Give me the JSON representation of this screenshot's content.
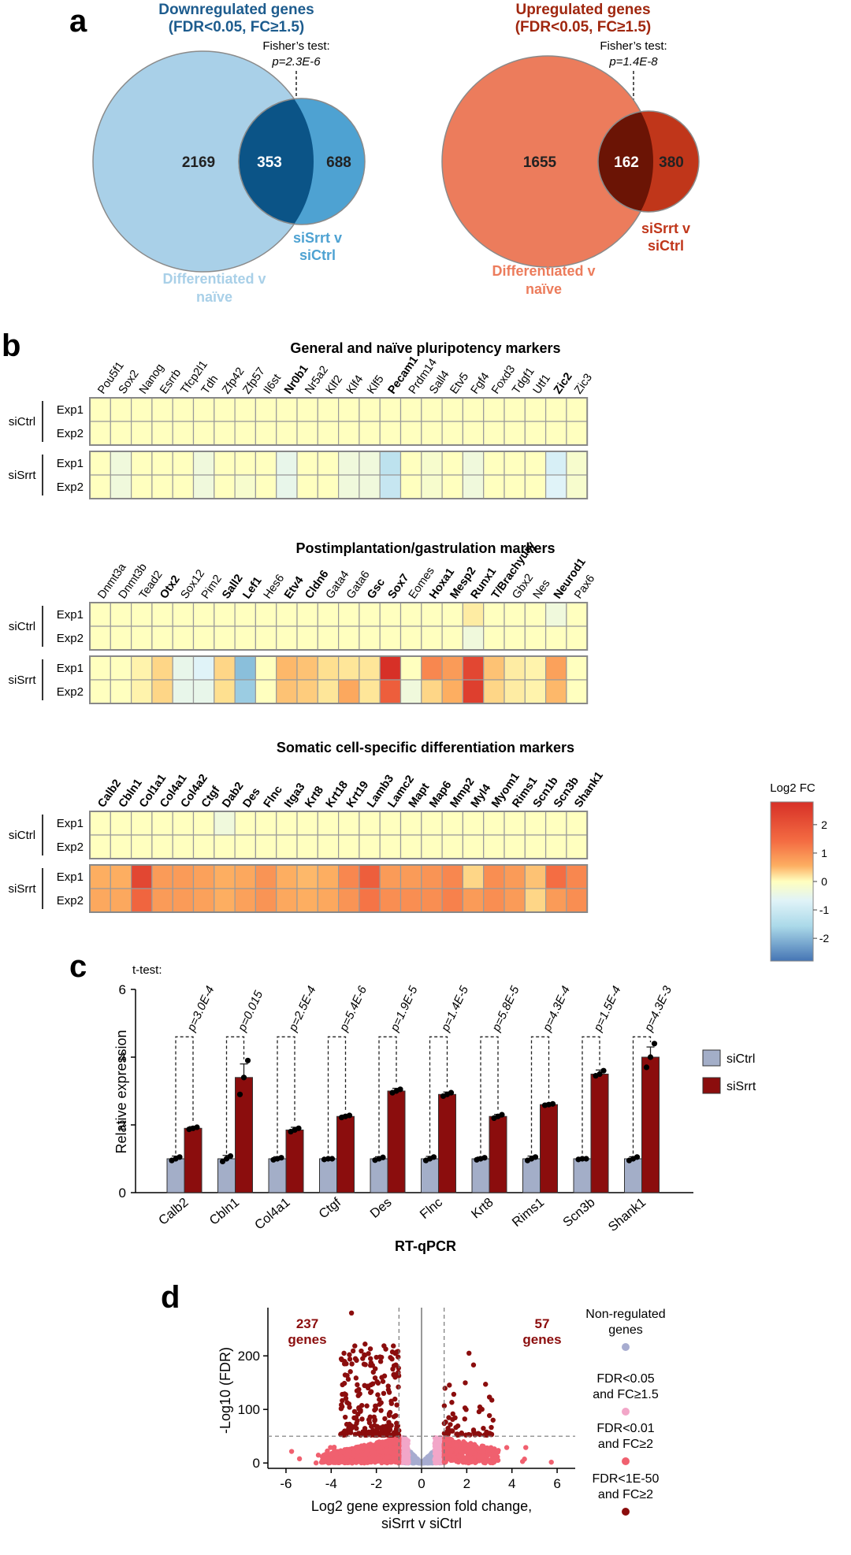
{
  "panel_a": {
    "label": "a",
    "left": {
      "title_line1": "Downregulated genes",
      "title_line2": "(FDR<0.05, FC≥1.5)",
      "fisher_line1": "Fisher’s test:",
      "fisher_line2": "p=2.3E-6",
      "only_big": "2169",
      "overlap": "353",
      "only_small": "688",
      "small_label_line1": "siSrrt v",
      "small_label_line2": "siCtrl",
      "big_label_line1": "Differentiated v",
      "big_label_line2": "naïve",
      "color_big": "#a9d0e8",
      "color_small": "#4ea2d2",
      "color_overlap": "#0b5487",
      "title_color": "#1d5c8e"
    },
    "right": {
      "title_line1": "Upregulated genes",
      "title_line2": "(FDR<0.05, FC≥1.5)",
      "fisher_line1": "Fisher’s test:",
      "fisher_line2": "p=1.4E-8",
      "only_big": "1655",
      "overlap": "162",
      "only_small": "380",
      "small_label_line1": "siSrrt v",
      "small_label_line2": "siCtrl",
      "big_label_line1": "Differentiated v",
      "big_label_line2": "naïve",
      "color_big": "#ec7c5c",
      "color_small": "#c0361a",
      "color_overlap": "#6b1405",
      "title_color": "#a0270f"
    }
  },
  "panel_b": {
    "label": "b",
    "row_labels": [
      "Exp1",
      "Exp2",
      "Exp1",
      "Exp2"
    ],
    "group_labels": [
      "siCtrl",
      "siSrrt"
    ],
    "legend": {
      "title": "Log2 FC",
      "ticks": [
        "2",
        "1",
        "0",
        "-1",
        "-2"
      ]
    },
    "heatmaps": [
      {
        "title": "General and naïve pluripotency markers",
        "genes": [
          "Pou5f1",
          "Sox2",
          "Nanog",
          "Esrrb",
          "Tfcp2l1",
          "Tdh",
          "Zfp42",
          "Zfp57",
          "Il6st",
          "Nr0b1",
          "Nr5a2",
          "Klf2",
          "Klf4",
          "Klf5",
          "Pecam1",
          "Prdm14",
          "Sall4",
          "Etv5",
          "Fgf4",
          "Foxd3",
          "Tdgf1",
          "Utf1",
          "Zic2",
          "Zic3"
        ],
        "bold": [
          "Nr0b1",
          "Pecam1",
          "Zic2"
        ],
        "values": [
          [
            0,
            0,
            0,
            0,
            0,
            0,
            0,
            0,
            0,
            0,
            0,
            0,
            0,
            0,
            0,
            0,
            0,
            0,
            0,
            0,
            0,
            0,
            0,
            0
          ],
          [
            0,
            0,
            0,
            0,
            0,
            0,
            0,
            0,
            0,
            0,
            0,
            0,
            0,
            0,
            0,
            0,
            0,
            0,
            0,
            0,
            0,
            0,
            0,
            0
          ],
          [
            0,
            -0.2,
            0,
            0,
            0,
            -0.2,
            0,
            0,
            0,
            -0.3,
            0,
            0,
            -0.2,
            -0.2,
            -0.8,
            0,
            -0.1,
            0,
            -0.2,
            0,
            0,
            0,
            -0.5,
            -0.1
          ],
          [
            0,
            -0.2,
            0,
            0,
            0,
            -0.2,
            0,
            -0.1,
            0,
            -0.3,
            0,
            0,
            -0.2,
            -0.2,
            -0.7,
            0,
            -0.1,
            0,
            -0.2,
            0,
            0,
            0,
            -0.4,
            -0.1
          ]
        ]
      },
      {
        "title": "Postimplantation/gastrulation markers",
        "genes": [
          "Dnmt3a",
          "Dnmt3b",
          "Tead2",
          "Otx2",
          "Sox12",
          "Pim2",
          "Sall2",
          "Lef1",
          "Hes6",
          "Etv4",
          "Cldn6",
          "Gata4",
          "Gata6",
          "Gsc",
          "Sox7",
          "Eomes",
          "Hoxa1",
          "Mesp2",
          "Runx1",
          "T/Brachyury",
          "Gbx2",
          "Nes",
          "Neurod1",
          "Pax6"
        ],
        "bold": [
          "Otx2",
          "Sall2",
          "Lef1",
          "Etv4",
          "Cldn6",
          "Gsc",
          "Sox7",
          "Hoxa1",
          "Mesp2",
          "Runx1",
          "T/Brachyury",
          "Neurod1"
        ],
        "values": [
          [
            0,
            0,
            0,
            0,
            0,
            0,
            0,
            0,
            0,
            0,
            0,
            0,
            0,
            0,
            0,
            0,
            0,
            0,
            0.3,
            0,
            0,
            0,
            -0.2,
            0
          ],
          [
            0,
            0,
            0,
            0,
            0,
            0,
            0,
            0,
            0,
            0,
            0,
            0,
            0,
            0,
            0,
            0,
            0,
            0,
            -0.2,
            0,
            0,
            0,
            0,
            0
          ],
          [
            0,
            0,
            0.2,
            0.6,
            -0.3,
            -0.4,
            0.6,
            -1.6,
            0,
            0.9,
            0.8,
            0.5,
            0.4,
            0.4,
            2.8,
            0,
            1.6,
            1.3,
            2.5,
            0.8,
            0.3,
            0.2,
            1.2,
            0
          ],
          [
            0,
            0,
            0.2,
            0.6,
            -0.3,
            -0.3,
            0.5,
            -1.3,
            0,
            0.8,
            0.7,
            0.4,
            1.1,
            0.4,
            2.2,
            -0.2,
            0.6,
            1.0,
            2.6,
            0.6,
            0.3,
            0.2,
            0.9,
            0
          ]
        ]
      },
      {
        "title": "Somatic cell-specific differentiation markers",
        "genes": [
          "Calb2",
          "Cbln1",
          "Col1a1",
          "Col4a1",
          "Col4a2",
          "Ctgf",
          "Dab2",
          "Des",
          "Flnc",
          "Itga3",
          "Krt8",
          "Krt18",
          "Krt19",
          "Lamb3",
          "Lamc2",
          "Mapt",
          "Map6",
          "Mmp2",
          "Myl4",
          "Myom1",
          "Rims1",
          "Scn1b",
          "Scn3b",
          "Shank1"
        ],
        "bold": [
          "Calb2",
          "Cbln1",
          "Col1a1",
          "Col4a1",
          "Col4a2",
          "Ctgf",
          "Dab2",
          "Des",
          "Flnc",
          "Itga3",
          "Krt8",
          "Krt18",
          "Krt19",
          "Lamb3",
          "Lamc2",
          "Mapt",
          "Map6",
          "Mmp2",
          "Myl4",
          "Myom1",
          "Rims1",
          "Scn1b",
          "Scn3b",
          "Shank1"
        ],
        "values": [
          [
            0,
            0,
            0,
            0,
            0,
            0,
            -0.2,
            0,
            0,
            0,
            0,
            0,
            0,
            0,
            0,
            0,
            0,
            0,
            0,
            0,
            0,
            0,
            0,
            0
          ],
          [
            0,
            0,
            0,
            0,
            0,
            0,
            0,
            0,
            0,
            0,
            0,
            0,
            0,
            0,
            0,
            0,
            0,
            0,
            0,
            0,
            0,
            0,
            0,
            0
          ],
          [
            1.0,
            1.0,
            2.5,
            1.3,
            1.3,
            1.2,
            1.0,
            1.1,
            1.4,
            1.0,
            0.9,
            1.0,
            1.6,
            2.2,
            1.3,
            1.3,
            1.4,
            1.6,
            0.6,
            1.5,
            1.3,
            0.8,
            2.0,
            1.6
          ],
          [
            1.1,
            1.1,
            2.1,
            1.3,
            1.3,
            1.2,
            1.0,
            1.2,
            1.4,
            1.1,
            1.0,
            1.1,
            1.4,
            1.9,
            1.5,
            1.5,
            1.5,
            1.7,
            1.3,
            1.5,
            1.3,
            0.6,
            1.3,
            1.5
          ]
        ]
      }
    ]
  },
  "panel_c": {
    "label": "c",
    "chart_data": {
      "type": "bar",
      "ttest_label": "t-test:",
      "categories": [
        "Calb2",
        "Cbln1",
        "Col4a1",
        "Ctgf",
        "Des",
        "Flnc",
        "Krt8",
        "Rims1",
        "Scn3b",
        "Shank1"
      ],
      "pvalues": [
        "p=3.0E-4",
        "p=0.015",
        "p=2.5E-4",
        "p=5.4E-6",
        "p=1.9E-5",
        "p=1.4E-5",
        "p=5.8E-5",
        "p=4.3E-4",
        "p=1.5E-4",
        "p=4.3E-3"
      ],
      "series": [
        {
          "name": "siCtrl",
          "color": "#a3aec8",
          "values": [
            1,
            1,
            1,
            1,
            1,
            1,
            1,
            1,
            1,
            1
          ],
          "errors": [
            0.08,
            0.1,
            0.06,
            0.03,
            0.06,
            0.07,
            0.05,
            0.08,
            0.04,
            0.06
          ],
          "points": [
            [
              0.95,
              1.0,
              1.05
            ],
            [
              0.92,
              1.0,
              1.08
            ],
            [
              0.97,
              1.0,
              1.03
            ],
            [
              0.98,
              1.0,
              1.0
            ],
            [
              0.96,
              1.0,
              1.04
            ],
            [
              0.95,
              1.0,
              1.05
            ],
            [
              0.97,
              1.0,
              1.03
            ],
            [
              0.95,
              1.0,
              1.05
            ],
            [
              0.98,
              1.0,
              1.0
            ],
            [
              0.95,
              1.0,
              1.05
            ]
          ]
        },
        {
          "name": "siSrrt",
          "color": "#8b0d0d",
          "values": [
            1.9,
            3.4,
            1.85,
            2.25,
            3.0,
            2.9,
            2.25,
            2.6,
            3.5,
            4.0
          ],
          "errors": [
            0.05,
            0.4,
            0.08,
            0.04,
            0.08,
            0.07,
            0.06,
            0.04,
            0.12,
            0.3
          ],
          "points": [
            [
              1.87,
              1.9,
              1.93
            ],
            [
              2.9,
              3.4,
              3.9
            ],
            [
              1.8,
              1.85,
              1.9
            ],
            [
              2.22,
              2.25,
              2.28
            ],
            [
              2.95,
              3.0,
              3.05
            ],
            [
              2.85,
              2.9,
              2.95
            ],
            [
              2.2,
              2.25,
              2.3
            ],
            [
              2.58,
              2.6,
              2.62
            ],
            [
              3.45,
              3.5,
              3.6
            ],
            [
              3.7,
              4.0,
              4.4
            ]
          ]
        }
      ],
      "ylabel": "Relative expression",
      "xlabel": "RT-qPCR",
      "ylim": [
        0,
        6
      ],
      "yticks": [
        "0",
        "2",
        "4",
        "6"
      ],
      "legend_position": "right"
    }
  },
  "panel_d": {
    "label": "d",
    "chart_data": {
      "type": "scatter",
      "xlabel_line1": "Log2 gene expression fold change,",
      "xlabel_line2": "siSrrt v siCtrl",
      "ylabel": "-Log10 (FDR)",
      "xlim": [
        -6.8,
        6.8
      ],
      "ylim": [
        -10,
        290
      ],
      "xticks": [
        "-6",
        "-4",
        "-2",
        "0",
        "2",
        "4",
        "6"
      ],
      "yticks": [
        "0",
        "100",
        "200"
      ],
      "fc_threshold": 1,
      "fdr_threshold": 50,
      "left_count_line1": "237",
      "left_count_line2": "genes",
      "right_count_line1": "57",
      "right_count_line2": "genes",
      "legend": [
        {
          "label_line1": "Non-regulated",
          "label_line2": "genes",
          "color": "#a7acd0"
        },
        {
          "label_line1": "FDR<0.05",
          "label_line2": "and FC≥1.5",
          "color": "#f2a6c8"
        },
        {
          "label_line1": "FDR<0.01",
          "label_line2": "and FC≥2",
          "color": "#f0606f"
        },
        {
          "label_line1": "FDR<1E-50",
          "label_line2": "and FC≥2",
          "color": "#8b0d0d"
        }
      ],
      "point_colors": {
        "nonreg": "#a7acd0",
        "fc15": "#f2a6c8",
        "fc2": "#f0606f",
        "top": "#8b0d0d"
      }
    }
  }
}
